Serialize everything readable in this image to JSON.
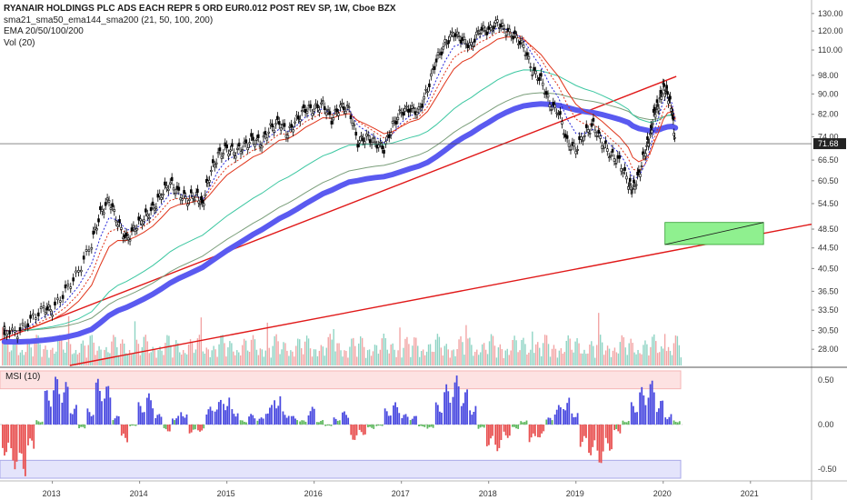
{
  "legend": {
    "title": "RYANAIR HOLDINGS PLC ADS EACH REPR 5 ORD EUR0.012 POST REV SP, 1W, Cboe BZX",
    "line2": "sma21_sma50_ema144_sma200 (21, 50, 100, 200)",
    "line3": "EMA 20/50/100/200",
    "line4": "Vol (20)"
  },
  "msi": {
    "label": "MSI (10)"
  },
  "last_price": "71.68",
  "colors": {
    "candle": "#000000",
    "ema_blue": "#2424d9",
    "ema_red": "#e0341a",
    "ema_teal": "#3cc7a1",
    "ema_green": "#7a9e7a",
    "sma200_thick": "#5a5af0",
    "trendline": "#e01818",
    "box_fill": "#8ff08f",
    "vol_up": "#8fd4c4",
    "vol_down": "#f2a5a5",
    "msi_pos": "#4a4ae0",
    "msi_neg": "#e85050",
    "msi_flat": "#5fb85f",
    "band_top": "#fde2e2",
    "band_bottom": "#e4e4fb"
  },
  "chart_data": [
    {
      "type": "candlestick",
      "title": "RYANAIR HOLDINGS PLC ADS EACH REPR 5 ORD EUR0.012 POST REV SP, 1W, Cboe BZX",
      "x_ticks": [
        "2013",
        "2014",
        "2015",
        "2016",
        "2017",
        "2018",
        "2019",
        "2020",
        "2021"
      ],
      "y_ticks": [
        "130.00",
        "120.00",
        "110.00",
        "98.00",
        "90.00",
        "82.00",
        "74.00",
        "66.50",
        "60.50",
        "54.50",
        "48.50",
        "44.50",
        "40.50",
        "36.50",
        "33.50",
        "30.50",
        "28.00"
      ],
      "y_scale": "log",
      "y_range": [
        26,
        136
      ],
      "x_range": [
        2012.4,
        2021.7
      ],
      "last_value": 71.68,
      "series_close": [
        {
          "x": 2012.45,
          "y": 30.5
        },
        {
          "x": 2012.6,
          "y": 30.2
        },
        {
          "x": 2012.75,
          "y": 32.0
        },
        {
          "x": 2012.9,
          "y": 33.8
        },
        {
          "x": 2013.0,
          "y": 33.5
        },
        {
          "x": 2013.15,
          "y": 36.5
        },
        {
          "x": 2013.3,
          "y": 40.0
        },
        {
          "x": 2013.45,
          "y": 45.5
        },
        {
          "x": 2013.55,
          "y": 52.0
        },
        {
          "x": 2013.65,
          "y": 55.5
        },
        {
          "x": 2013.75,
          "y": 50.0
        },
        {
          "x": 2013.85,
          "y": 46.0
        },
        {
          "x": 2013.95,
          "y": 49.0
        },
        {
          "x": 2014.05,
          "y": 51.0
        },
        {
          "x": 2014.15,
          "y": 53.0
        },
        {
          "x": 2014.25,
          "y": 57.0
        },
        {
          "x": 2014.35,
          "y": 60.0
        },
        {
          "x": 2014.45,
          "y": 57.0
        },
        {
          "x": 2014.55,
          "y": 55.5
        },
        {
          "x": 2014.65,
          "y": 57.0
        },
        {
          "x": 2014.72,
          "y": 54.0
        },
        {
          "x": 2014.8,
          "y": 62.0
        },
        {
          "x": 2014.9,
          "y": 68.0
        },
        {
          "x": 2015.0,
          "y": 70.0
        },
        {
          "x": 2015.1,
          "y": 69.0
        },
        {
          "x": 2015.2,
          "y": 71.0
        },
        {
          "x": 2015.3,
          "y": 73.0
        },
        {
          "x": 2015.4,
          "y": 72.0
        },
        {
          "x": 2015.5,
          "y": 77.0
        },
        {
          "x": 2015.6,
          "y": 79.0
        },
        {
          "x": 2015.7,
          "y": 75.0
        },
        {
          "x": 2015.8,
          "y": 80.0
        },
        {
          "x": 2015.9,
          "y": 84.0
        },
        {
          "x": 2016.0,
          "y": 84.0
        },
        {
          "x": 2016.1,
          "y": 86.0
        },
        {
          "x": 2016.2,
          "y": 80.0
        },
        {
          "x": 2016.3,
          "y": 85.0
        },
        {
          "x": 2016.4,
          "y": 84.0
        },
        {
          "x": 2016.5,
          "y": 72.0
        },
        {
          "x": 2016.6,
          "y": 74.0
        },
        {
          "x": 2016.7,
          "y": 72.0
        },
        {
          "x": 2016.8,
          "y": 70.0
        },
        {
          "x": 2016.9,
          "y": 78.0
        },
        {
          "x": 2017.0,
          "y": 83.0
        },
        {
          "x": 2017.1,
          "y": 84.0
        },
        {
          "x": 2017.2,
          "y": 83.0
        },
        {
          "x": 2017.3,
          "y": 92.0
        },
        {
          "x": 2017.4,
          "y": 105.0
        },
        {
          "x": 2017.5,
          "y": 113.0
        },
        {
          "x": 2017.6,
          "y": 119.0
        },
        {
          "x": 2017.7,
          "y": 115.0
        },
        {
          "x": 2017.8,
          "y": 112.0
        },
        {
          "x": 2017.9,
          "y": 121.0
        },
        {
          "x": 2018.0,
          "y": 120.0
        },
        {
          "x": 2018.1,
          "y": 125.0
        },
        {
          "x": 2018.2,
          "y": 120.0
        },
        {
          "x": 2018.3,
          "y": 117.0
        },
        {
          "x": 2018.4,
          "y": 112.0
        },
        {
          "x": 2018.5,
          "y": 100.0
        },
        {
          "x": 2018.6,
          "y": 96.0
        },
        {
          "x": 2018.7,
          "y": 86.0
        },
        {
          "x": 2018.8,
          "y": 83.0
        },
        {
          "x": 2018.9,
          "y": 72.0
        },
        {
          "x": 2019.0,
          "y": 70.0
        },
        {
          "x": 2019.1,
          "y": 75.0
        },
        {
          "x": 2019.2,
          "y": 78.0
        },
        {
          "x": 2019.3,
          "y": 72.0
        },
        {
          "x": 2019.4,
          "y": 68.0
        },
        {
          "x": 2019.5,
          "y": 66.0
        },
        {
          "x": 2019.6,
          "y": 60.0
        },
        {
          "x": 2019.65,
          "y": 58.0
        },
        {
          "x": 2019.72,
          "y": 62.0
        },
        {
          "x": 2019.8,
          "y": 70.0
        },
        {
          "x": 2019.85,
          "y": 74.0
        },
        {
          "x": 2019.9,
          "y": 83.0
        },
        {
          "x": 2019.95,
          "y": 86.0
        },
        {
          "x": 2020.0,
          "y": 93.0
        },
        {
          "x": 2020.05,
          "y": 90.0
        },
        {
          "x": 2020.1,
          "y": 84.0
        },
        {
          "x": 2020.14,
          "y": 71.68
        }
      ]
    },
    {
      "type": "bar",
      "title": "MSI (10)",
      "y_ticks": [
        "0.50",
        "0.00",
        "-0.50"
      ],
      "y_range": [
        -0.62,
        0.62
      ],
      "values": [
        -0.35,
        -0.5,
        -0.58,
        -0.3,
        0.05,
        0.4,
        0.55,
        0.48,
        0.22,
        -0.05,
        0.18,
        0.52,
        0.45,
        0.1,
        -0.2,
        -0.02,
        0.25,
        0.35,
        0.12,
        -0.08,
        0.1,
        0.15,
        -0.1,
        -0.08,
        0.2,
        0.28,
        0.32,
        0.18,
        0.05,
        0.12,
        0.08,
        0.22,
        0.35,
        0.15,
        0.1,
        0.05,
        0.2,
        0.05,
        -0.02,
        0.08,
        0.15,
        -0.18,
        -0.12,
        -0.05,
        -0.02,
        0.18,
        0.25,
        0.12,
        0.1,
        -0.03,
        -0.05,
        0.25,
        0.45,
        0.55,
        0.4,
        0.22,
        -0.05,
        -0.25,
        -0.3,
        -0.15,
        -0.05,
        0.05,
        -0.2,
        -0.15,
        0.08,
        0.22,
        0.3,
        0.15,
        -0.25,
        -0.35,
        -0.45,
        -0.3,
        -0.1,
        0.05,
        0.25,
        0.42,
        0.5,
        0.28,
        0.12,
        0.05
      ]
    }
  ]
}
